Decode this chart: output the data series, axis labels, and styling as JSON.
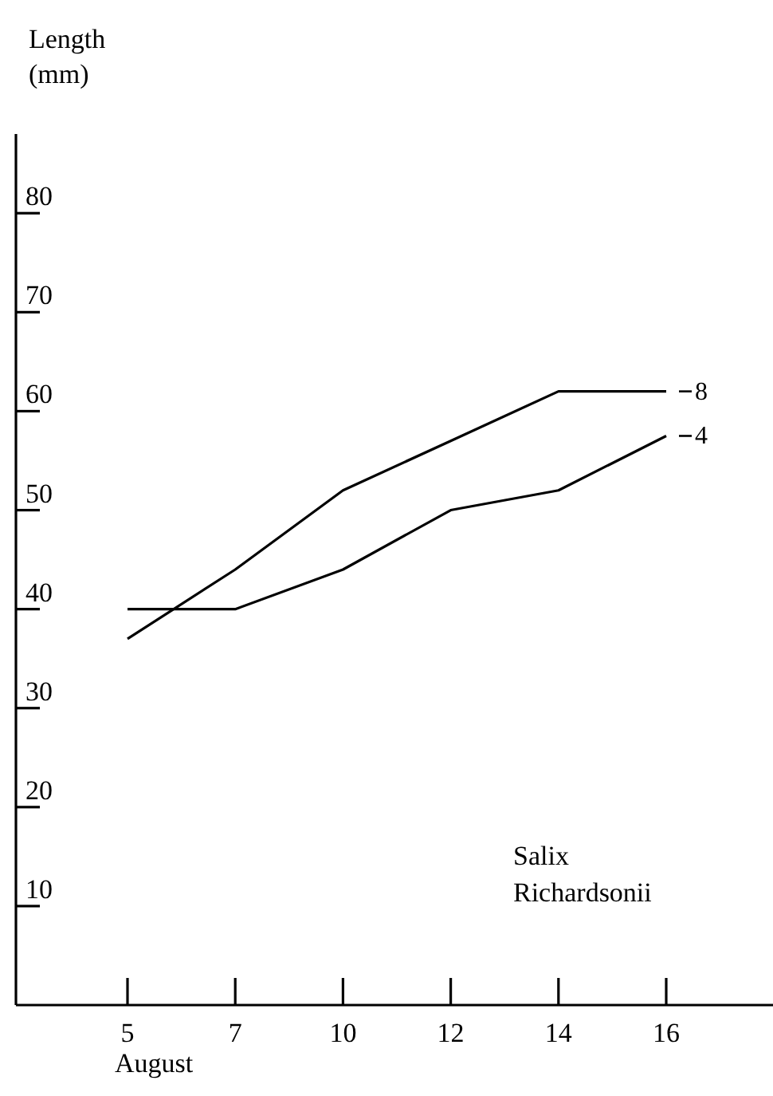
{
  "chart_data": {
    "type": "line",
    "xlabel": "August",
    "ylabel": "Length (mm)",
    "categories": [
      "5",
      "7",
      "10",
      "12",
      "14",
      "16"
    ],
    "ylim": [
      0,
      88
    ],
    "yticks": [
      10,
      20,
      30,
      40,
      50,
      60,
      70,
      80
    ],
    "grid": false,
    "legend": "right",
    "marker": "none",
    "line_style": "solid",
    "annotations": [
      "Salix Richardsonii"
    ],
    "series": [
      {
        "name": "8",
        "color": "#000000",
        "values": [
          37,
          44,
          52,
          57,
          62,
          62
        ]
      },
      {
        "name": "4",
        "color": "#000000",
        "values": [
          40,
          40,
          44,
          50,
          52,
          57.5
        ]
      }
    ]
  }
}
